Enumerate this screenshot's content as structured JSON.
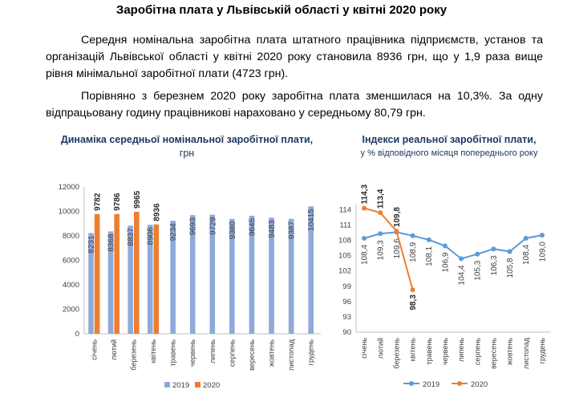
{
  "title": "Заробітна плата у Львівській області у квітні 2020 року",
  "paragraph1": "Середня номінальна заробітна плата штатного працівника підприємств, установ та організацій Львівської області у квітні 2020 року становила 8936 грн, що у 1,9 раза вище рівня мінімальної заробітної плати (4723 грн).",
  "paragraph2": "Порівняно з березнем 2020 року заробітна плата зменшилася на 10,3%. За одну відпрацьовану годину працівникові нараховано у середньому 80,79 грн.",
  "chart1_heading": {
    "main": "Динаміка середньої номінальної заробітної плати,",
    "unit": " грн"
  },
  "chart2_heading": {
    "main": "Індекси реальної заробітної плати,",
    "sub": "у % відповідного місяця попереднього року"
  },
  "chart_data": [
    {
      "type": "bar",
      "title": "Динаміка середньої номінальної заробітної плати, грн",
      "categories": [
        "січень",
        "лютий",
        "березень",
        "квітень",
        "травень",
        "червень",
        "липень",
        "серпень",
        "вересень",
        "жовтень",
        "листопад",
        "грудень"
      ],
      "series": [
        {
          "name": "2019",
          "color": "#8eaadb",
          "values": [
            8231,
            8368,
            8837,
            8906,
            9234,
            9693,
            9729,
            9380,
            9645,
            9483,
            9387,
            10415
          ]
        },
        {
          "name": "2020",
          "color": "#ed7d31",
          "values": [
            9782,
            9786,
            9965,
            8936,
            null,
            null,
            null,
            null,
            null,
            null,
            null,
            null
          ]
        }
      ],
      "yticks": [
        "0",
        "2000",
        "4000",
        "6000",
        "8000",
        "10000",
        "12000"
      ],
      "ylim": [
        0,
        12000
      ],
      "legend": "bottom",
      "grid": false
    },
    {
      "type": "line",
      "title": "Індекси реальної заробітної плати, у % відповідного місяця попереднього року",
      "categories": [
        "січень",
        "лютий",
        "березень",
        "квітень",
        "травень",
        "червень",
        "липень",
        "серпень",
        "вересень",
        "жовтень",
        "листопад",
        "грудень"
      ],
      "series": [
        {
          "name": "2019",
          "color": "#5b9bd5",
          "values": [
            108.4,
            109.3,
            109.6,
            108.9,
            108.1,
            106.9,
            104.4,
            105.3,
            106.3,
            105.8,
            108.4,
            109.0
          ],
          "labels": [
            "108,4",
            "109,3",
            "109,6",
            "108,9",
            "108,1",
            "106,9",
            "104,4",
            "105,3",
            "106,3",
            "105,8",
            "108,4",
            "109,0"
          ]
        },
        {
          "name": "2020",
          "color": "#ed7d31",
          "values": [
            114.3,
            113.4,
            109.8,
            98.3,
            null,
            null,
            null,
            null,
            null,
            null,
            null,
            null
          ],
          "labels": [
            "114,3",
            "113,4",
            "109,8",
            "98,3"
          ]
        }
      ],
      "yticks": [
        "90",
        "93",
        "96",
        "99",
        "102",
        "105",
        "108",
        "111",
        "114"
      ],
      "ylim": [
        90,
        115
      ],
      "legend": "bottom",
      "grid": false
    }
  ]
}
